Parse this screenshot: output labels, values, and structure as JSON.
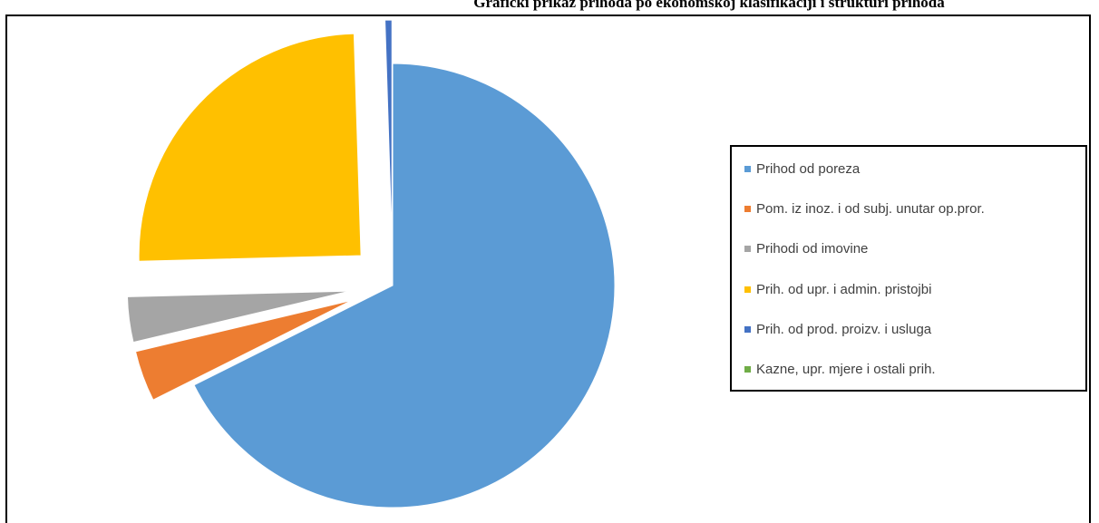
{
  "title": "Grafički prikaz prihoda po ekonomskoj klasifikaciji i strukturi prihoda",
  "chart_data": {
    "type": "pie",
    "title": "",
    "legend_position": "right",
    "slices": [
      {
        "name": "Prihod od poreza",
        "value": 67.6,
        "color": "#5B9BD5"
      },
      {
        "name": "Pom. iz inoz. i od subj. unutar op.pror.",
        "value": 3.7,
        "color": "#ED7D31"
      },
      {
        "name": "Prihodi od imovine",
        "value": 3.3,
        "color": "#A5A5A5"
      },
      {
        "name": "Prih. od upr. i admin. pristojbi",
        "value": 24.9,
        "color": "#FFC000"
      },
      {
        "name": "Prih. od prod. proizv. i usluga",
        "value": 0.5,
        "color": "#4472C4"
      },
      {
        "name": "Kazne, upr. mjere i ostali prih.",
        "value": 0.0,
        "color": "#70AD47"
      }
    ]
  }
}
